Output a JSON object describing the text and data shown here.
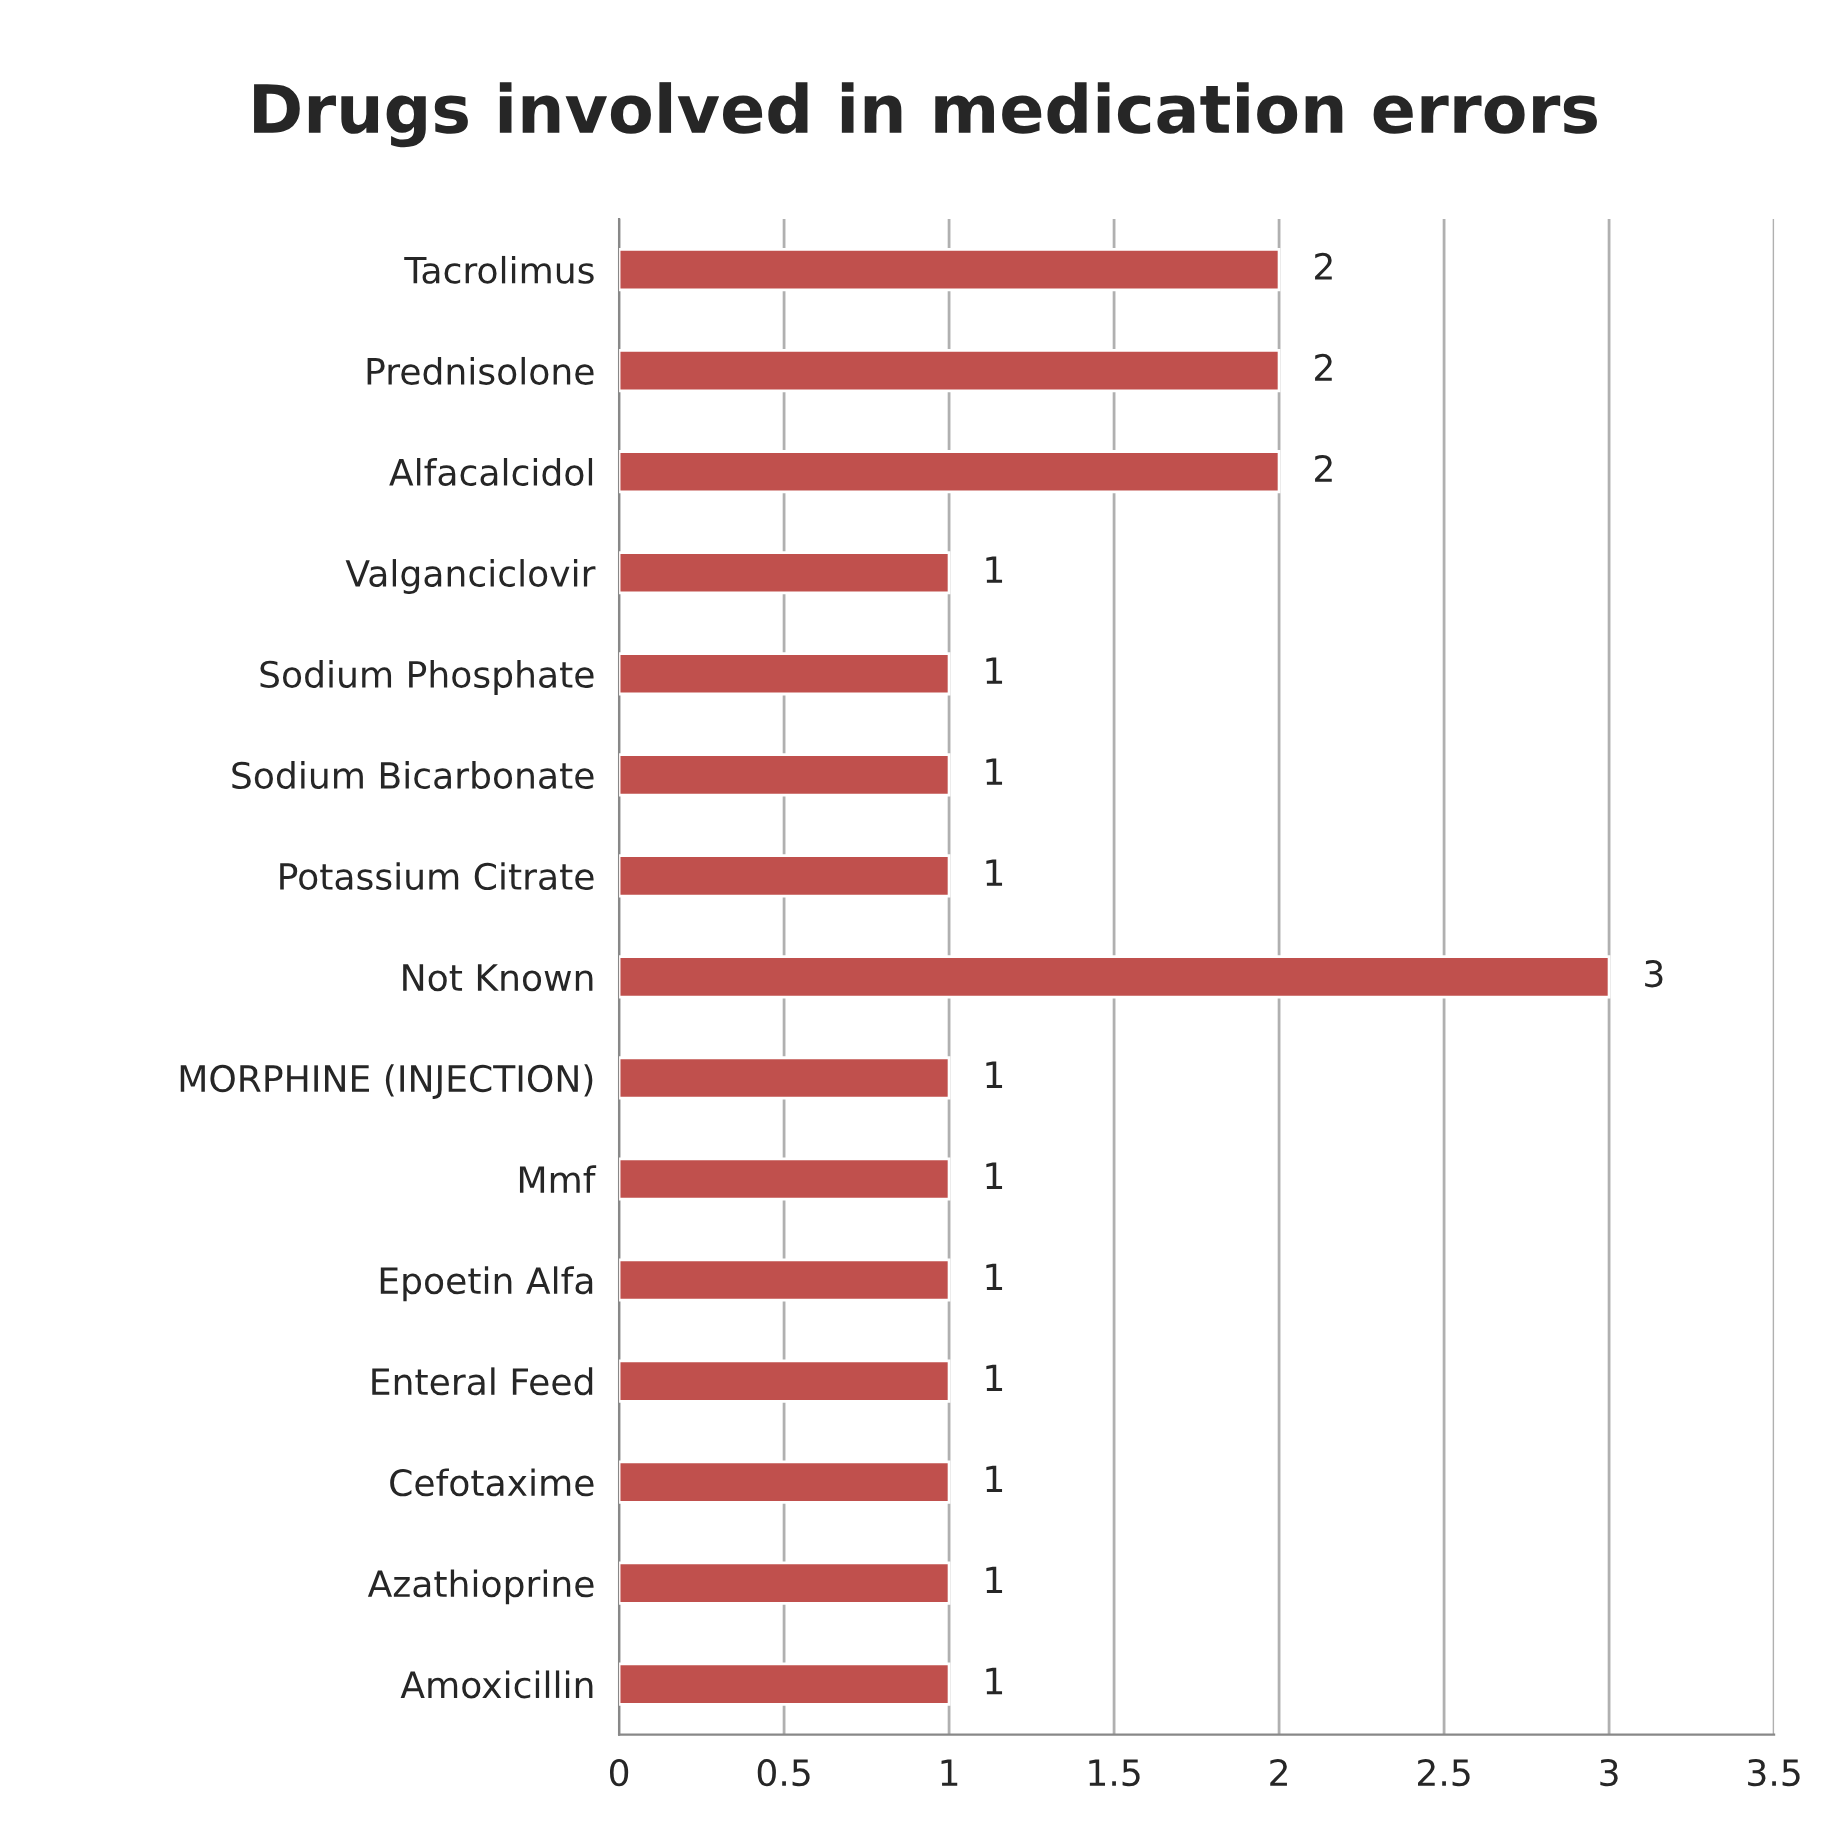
{
  "chart_data": {
    "type": "bar",
    "orientation": "horizontal",
    "title": "Drugs involved in medication errors",
    "categories": [
      "Tacrolimus",
      "Prednisolone",
      "Alfacalcidol",
      "Valganciclovir",
      "Sodium Phosphate",
      "Sodium Bicarbonate",
      "Potassium Citrate",
      "Not Known",
      "MORPHINE (INJECTION)",
      "Mmf",
      "Epoetin Alfa",
      "Enteral Feed",
      "Cefotaxime",
      "Azathioprine",
      "Amoxicillin"
    ],
    "values": [
      2,
      2,
      2,
      1,
      1,
      1,
      1,
      3,
      1,
      1,
      1,
      1,
      1,
      1,
      1
    ],
    "color": "#c0504d",
    "xlim": [
      0,
      3.5
    ],
    "xticks": [
      0,
      0.5,
      1,
      1.5,
      2,
      2.5,
      3,
      3.5
    ],
    "grid": "x",
    "data_labels": true
  }
}
